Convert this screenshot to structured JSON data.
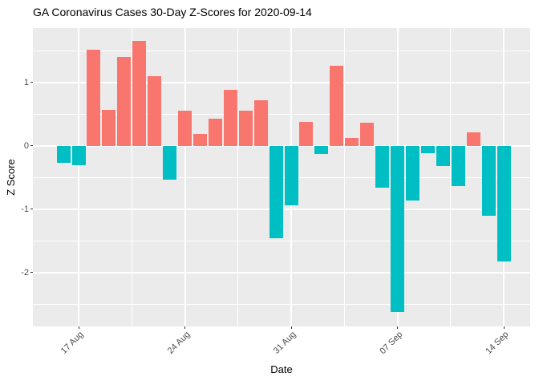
{
  "figure": {
    "title": "GA Coronavirus Cases 30-Day Z-Scores for 2020-09-14"
  },
  "colors": {
    "positive_bar": "#F8766D",
    "negative_bar": "#00BFC4",
    "panel_background": "#EBEBEB",
    "gridline": "#FFFFFF",
    "axis_text": "#4D4D4D",
    "tick_mark": "#333333",
    "title_text": "#000000"
  },
  "chart_data": {
    "type": "bar",
    "title": "GA Coronavirus Cases 30-Day Z-Scores for 2020-09-14",
    "xlabel": "Date",
    "ylabel": "Z Score",
    "ylim": [
      -2.85,
      1.86
    ],
    "grid": "white major and minor gridlines on grey panel",
    "legend": "none",
    "bar_color_rule": "positive values salmon, negative values teal",
    "x": [
      "2020-08-16",
      "2020-08-17",
      "2020-08-18",
      "2020-08-19",
      "2020-08-20",
      "2020-08-21",
      "2020-08-22",
      "2020-08-23",
      "2020-08-24",
      "2020-08-25",
      "2020-08-26",
      "2020-08-27",
      "2020-08-28",
      "2020-08-29",
      "2020-08-30",
      "2020-08-31",
      "2020-09-01",
      "2020-09-02",
      "2020-09-03",
      "2020-09-04",
      "2020-09-05",
      "2020-09-06",
      "2020-09-07",
      "2020-09-08",
      "2020-09-09",
      "2020-09-10",
      "2020-09-11",
      "2020-09-12",
      "2020-09-13",
      "2020-09-14"
    ],
    "values": [
      -0.27,
      -0.31,
      1.52,
      0.57,
      1.41,
      1.66,
      1.1,
      -0.53,
      0.55,
      0.19,
      0.43,
      0.89,
      0.55,
      0.72,
      -1.46,
      -0.94,
      0.38,
      -0.13,
      1.27,
      0.12,
      0.36,
      -0.66,
      -2.62,
      -0.86,
      -0.12,
      -0.32,
      -0.64,
      0.21,
      -1.1,
      -1.83
    ],
    "yticks": [
      1,
      0,
      -1,
      -2
    ],
    "ytick_labels": [
      "1",
      "0",
      "-1",
      "-2"
    ],
    "yticks_minor": [
      1.5,
      0.5,
      -0.5,
      -1.5,
      -2.5
    ],
    "xticks": [
      {
        "label": "17 Aug",
        "index": 1
      },
      {
        "label": "24 Aug",
        "index": 8
      },
      {
        "label": "31 Aug",
        "index": 15
      },
      {
        "label": "07 Sep",
        "index": 22
      },
      {
        "label": "14 Sep",
        "index": 29
      }
    ]
  }
}
